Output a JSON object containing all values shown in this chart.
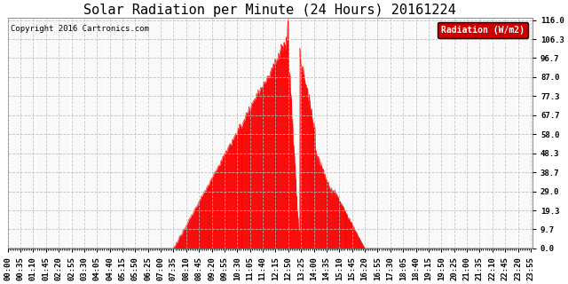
{
  "title": "Solar Radiation per Minute (24 Hours) 20161224",
  "copyright": "Copyright 2016 Cartronics.com",
  "legend_label": "Radiation (W/m2)",
  "yticks": [
    0.0,
    9.7,
    19.3,
    29.0,
    38.7,
    48.3,
    58.0,
    67.7,
    77.3,
    87.0,
    96.7,
    106.3,
    116.0
  ],
  "ymax": 116.0,
  "bar_color": "#ff0000",
  "legend_bg": "#cc0000",
  "legend_text_color": "#ffffff",
  "bg_color": "#ffffff",
  "grid_color": "#bbbbbb",
  "baseline_color": "#ff0000",
  "title_fontsize": 11,
  "copyright_fontsize": 6.5,
  "axis_tick_fontsize": 6.5,
  "sunrise_min": 455,
  "sunset_min": 980,
  "peak_min": 770,
  "peak_val": 116.0,
  "total_minutes": 1440,
  "x_tick_interval": 35
}
